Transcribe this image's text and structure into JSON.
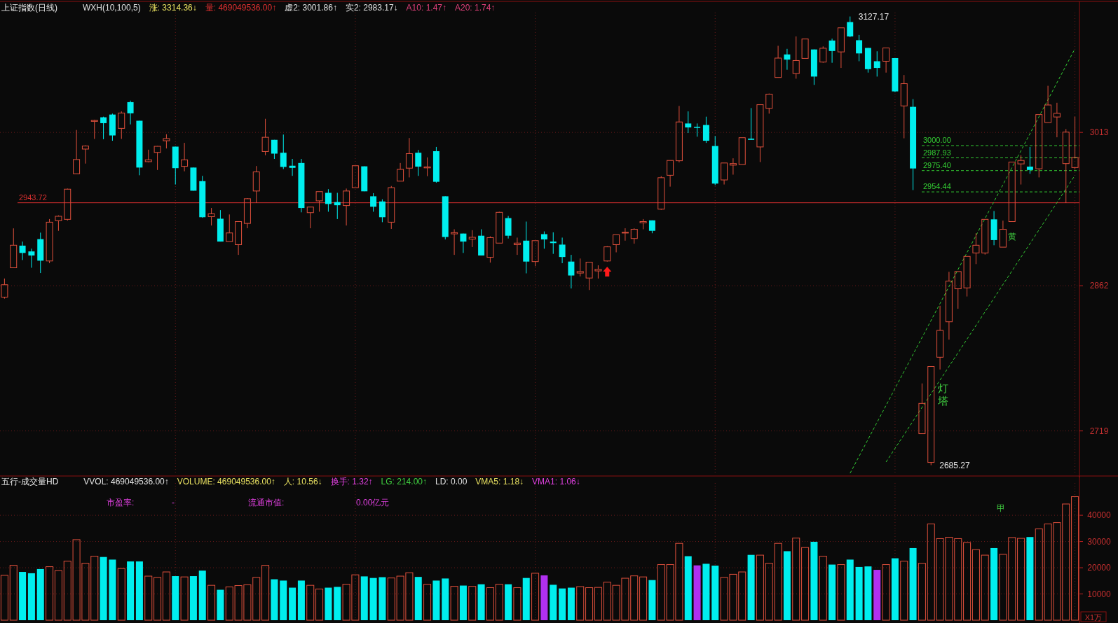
{
  "chart_data": [
    {
      "type": "candlestick",
      "title": "上证指数(日线)",
      "subtitle": "WXH(10,100,5)   涨: 3314.36↓   量: 469049536.00↑   虚2: 3001.86↑   实2: 2983.17↓   A10: 1.47↑   A20: 1.74↑",
      "categories": [
        null,
        null,
        null,
        null,
        null,
        null,
        null,
        null,
        null,
        null,
        null,
        null,
        null,
        null,
        null,
        null,
        null,
        null,
        null,
        null,
        null,
        null,
        null,
        null,
        null,
        null,
        null,
        null,
        null,
        null,
        null,
        null,
        null,
        null,
        null,
        null,
        null,
        null,
        null,
        null,
        null,
        null,
        null,
        null,
        null,
        null,
        null,
        null,
        null,
        null,
        null,
        null,
        null,
        null,
        null,
        null,
        null,
        null,
        null,
        null,
        null,
        null,
        null,
        null,
        null,
        null,
        null,
        null,
        null,
        null,
        null,
        null,
        null,
        null,
        null,
        null,
        null,
        null,
        null,
        null,
        null,
        null,
        null,
        null,
        null,
        null,
        null,
        null,
        null,
        null,
        null,
        null,
        null,
        null,
        null,
        null,
        null,
        null,
        null,
        null,
        null,
        null,
        null,
        null,
        null,
        null,
        null,
        null,
        null,
        null,
        null,
        null,
        null,
        null,
        null,
        null,
        null,
        null,
        null,
        null
      ],
      "ohlc": [
        [
          2850.8,
          2869.1,
          2849.3,
          2863.0
        ],
        [
          2879.7,
          2918.5,
          2879.7,
          2901.9
        ],
        [
          2901.5,
          2905.5,
          2887.3,
          2894.3
        ],
        [
          2895.8,
          2898.5,
          2879.7,
          2891.8
        ],
        [
          2907.9,
          2914.3,
          2874.5,
          2886.7
        ],
        [
          2886.4,
          2927.7,
          2884.2,
          2924.6
        ],
        [
          2926.1,
          2931.3,
          2916.1,
          2930.4
        ],
        [
          2927.4,
          2957.7,
          2926.1,
          2957.1
        ],
        [
          2972.3,
          3015.4,
          2972.3,
          2986.3
        ],
        [
          2996.6,
          3000.3,
          2982.3,
          2999.6
        ],
        [
          3023.9,
          3025.5,
          3006.6,
          3024.8
        ],
        [
          3027.9,
          3028.5,
          3006.3,
          3022.1
        ],
        [
          3030.6,
          3031.5,
          3004.8,
          3010.0
        ],
        [
          3017.0,
          3033.7,
          3006.6,
          3032.1
        ],
        [
          3042.8,
          3044.3,
          3020.9,
          3031.8
        ],
        [
          3024.5,
          3024.5,
          2970.8,
          2978.4
        ],
        [
          2984.2,
          2996.0,
          2983.5,
          2986.0
        ],
        [
          2993.3,
          2999.6,
          2976.0,
          2999.3
        ],
        [
          3004.8,
          3011.2,
          2997.2,
          3006.9
        ],
        [
          2999.0,
          2999.0,
          2961.7,
          2977.8
        ],
        [
          2979.6,
          3002.7,
          2974.7,
          2986.0
        ],
        [
          2978.4,
          2978.4,
          2955.6,
          2955.6
        ],
        [
          2965.0,
          2970.2,
          2928.9,
          2929.5
        ],
        [
          2930.1,
          2938.6,
          2921.3,
          2932.8
        ],
        [
          2928.0,
          2936.5,
          2905.5,
          2905.5
        ],
        [
          2905.5,
          2932.2,
          2905.5,
          2914.0
        ],
        [
          2902.5,
          2925.2,
          2892.4,
          2925.2
        ],
        [
          2923.4,
          2948.3,
          2918.6,
          2947.7
        ],
        [
          2955.3,
          2979.9,
          2943.5,
          2974.1
        ],
        [
          2994.2,
          3026.4,
          2990.5,
          3008.2
        ],
        [
          3005.7,
          3005.7,
          2986.9,
          2992.1
        ],
        [
          2993.0,
          3010.9,
          2976.9,
          2979.0
        ],
        [
          2980.2,
          2986.9,
          2970.2,
          2978.1
        ],
        [
          2982.9,
          2986.9,
          2934.3,
          2938.6
        ],
        [
          2934.0,
          2939.5,
          2918.6,
          2939.5
        ],
        [
          2945.6,
          2954.7,
          2934.9,
          2954.7
        ],
        [
          2953.5,
          2957.1,
          2934.9,
          2942.5
        ],
        [
          2944.4,
          2953.5,
          2927.7,
          2941.3
        ],
        [
          2941.0,
          2957.7,
          2921.3,
          2955.3
        ],
        [
          2958.6,
          2980.2,
          2958.6,
          2980.2
        ],
        [
          2979.6,
          2979.6,
          2955.0,
          2955.0
        ],
        [
          2950.1,
          2953.2,
          2934.9,
          2939.8
        ],
        [
          2945.0,
          2947.1,
          2924.6,
          2929.5
        ],
        [
          2924.6,
          2960.2,
          2918.0,
          2958.6
        ],
        [
          2965.0,
          2982.9,
          2965.0,
          2976.6
        ],
        [
          2977.8,
          3007.5,
          2968.7,
          2992.1
        ],
        [
          2993.0,
          2995.7,
          2970.2,
          2979.3
        ],
        [
          2978.1,
          2988.4,
          2969.9,
          2979.0
        ],
        [
          2994.5,
          2998.7,
          2963.5,
          2964.4
        ],
        [
          2950.1,
          2950.1,
          2907.6,
          2910.0
        ],
        [
          2913.1,
          2917.6,
          2892.4,
          2914.3
        ],
        [
          2913.4,
          2913.4,
          2894.3,
          2905.5
        ],
        [
          2907.9,
          2916.7,
          2900.1,
          2909.7
        ],
        [
          2911.3,
          2917.6,
          2891.8,
          2891.8
        ],
        [
          2890.0,
          2910.7,
          2884.8,
          2909.4
        ],
        [
          2904.0,
          2934.9,
          2904.0,
          2934.3
        ],
        [
          2928.6,
          2930.7,
          2908.5,
          2911.3
        ],
        [
          2902.5,
          2909.4,
          2892.4,
          2904.0
        ],
        [
          2906.4,
          2925.2,
          2874.2,
          2885.8
        ],
        [
          2885.8,
          2906.4,
          2881.2,
          2906.4
        ],
        [
          2912.8,
          2915.5,
          2898.5,
          2907.6
        ],
        [
          2905.5,
          2914.6,
          2893.4,
          2904.0
        ],
        [
          2902.5,
          2909.4,
          2884.2,
          2890.3
        ],
        [
          2885.8,
          2892.4,
          2859.3,
          2872.1
        ],
        [
          2874.5,
          2888.8,
          2871.2,
          2876.0
        ],
        [
          2869.6,
          2885.2,
          2857.8,
          2885.2
        ],
        [
          2876.6,
          2882.1,
          2869.1,
          2878.2
        ],
        [
          2886.4,
          2901.0,
          2885.8,
          2900.3
        ],
        [
          2902.5,
          2912.2,
          2894.9,
          2912.2
        ],
        [
          2914.0,
          2918.6,
          2906.4,
          2914.6
        ],
        [
          2908.5,
          2918.6,
          2903.4,
          2917.6
        ],
        [
          2924.0,
          2927.7,
          2917.6,
          2925.2
        ],
        [
          2926.4,
          2926.4,
          2913.7,
          2916.1
        ],
        [
          2937.4,
          2969.9,
          2936.8,
          2968.4
        ],
        [
          2970.8,
          2985.4,
          2959.6,
          2985.4
        ],
        [
          2985.1,
          3039.1,
          2983.5,
          3023.3
        ],
        [
          3021.8,
          3033.7,
          3012.4,
          3017.9
        ],
        [
          3018.5,
          3021.8,
          3008.8,
          3017.9
        ],
        [
          3020.3,
          3028.5,
          3002.7,
          3004.8
        ],
        [
          2999.6,
          3009.4,
          2961.1,
          2962.6
        ],
        [
          2966.2,
          2982.9,
          2961.7,
          2982.9
        ],
        [
          2980.8,
          2987.5,
          2971.4,
          2982.3
        ],
        [
          2981.4,
          3007.8,
          2981.4,
          3007.8
        ],
        [
          3006.9,
          3037.0,
          3005.7,
          3005.7
        ],
        [
          2998.7,
          3040.3,
          2983.8,
          3040.3
        ],
        [
          3036.7,
          3051.3,
          3031.5,
          3050.7
        ],
        [
          3067.1,
          3098.3,
          3067.1,
          3086.2
        ],
        [
          3089.8,
          3095.3,
          3074.7,
          3084.7
        ],
        [
          3071.0,
          3107.5,
          3065.9,
          3083.8
        ],
        [
          3085.9,
          3105.0,
          3085.9,
          3105.0
        ],
        [
          3094.7,
          3094.7,
          3059.8,
          3068.0
        ],
        [
          3082.3,
          3097.7,
          3081.6,
          3095.9
        ],
        [
          3103.5,
          3105.3,
          3081.6,
          3093.2
        ],
        [
          3092.3,
          3116.0,
          3076.5,
          3116.0
        ],
        [
          3121.7,
          3127.17,
          3106.8,
          3107.5
        ],
        [
          3103.8,
          3109.0,
          3083.1,
          3090.8
        ],
        [
          3096.2,
          3096.2,
          3071.9,
          3075.3
        ],
        [
          3083.1,
          3092.9,
          3068.0,
          3076.5
        ],
        [
          3083.1,
          3096.2,
          3071.9,
          3096.2
        ],
        [
          3086.2,
          3086.2,
          3052.8,
          3053.4
        ],
        [
          3039.1,
          3069.5,
          3007.2,
          3061.0
        ],
        [
          3038.2,
          3045.8,
          2956.2,
          2977.5
        ],
        [
          2716.3,
          2765.8,
          2716.3,
          2746.1
        ],
        [
          2688.0,
          2782.5,
          2685.27,
          2782.5
        ],
        [
          2791.6,
          2842.3,
          2779.5,
          2818.0
        ],
        [
          2826.5,
          2875.7,
          2808.9,
          2866.6
        ],
        [
          2859.0,
          2876.0,
          2839.3,
          2876.0
        ],
        [
          2859.9,
          2890.9,
          2851.4,
          2890.9
        ],
        [
          2894.3,
          2913.7,
          2883.3,
          2901.9
        ],
        [
          2894.3,
          2927.4,
          2892.7,
          2927.4
        ],
        [
          2927.4,
          2935.6,
          2901.9,
          2907.0
        ],
        [
          2900.0,
          2926.1,
          2900.0,
          2917.6
        ],
        [
          2925.2,
          2983.8,
          2925.2,
          2983.8
        ],
        [
          2982.0,
          2990.5,
          2961.7,
          2985.4
        ],
        [
          2979.3,
          2998.7,
          2972.3,
          2976.0
        ],
        [
          2977.2,
          3030.6,
          2968.7,
          3030.6
        ],
        [
          3022.7,
          3058.9,
          3022.7,
          3040.0
        ],
        [
          3028.2,
          3042.2,
          3008.2,
          3031.8
        ],
        [
          2982.3,
          3016.3,
          2943.5,
          3013.3
        ],
        [
          2978.4,
          3028.5,
          2976.9,
          2988.4
        ]
      ],
      "colors": [
        "#e0503c",
        "#e0503c",
        "#00eeee",
        "#00eeee",
        "#00eeee",
        "#e0503c",
        "#e0503c",
        "#e0503c",
        "#e0503c",
        "#e0503c",
        "#e0503c",
        "#00eeee",
        "#00eeee",
        "#e0503c",
        "#00eeee",
        "#00eeee",
        "#e0503c",
        "#e0503c",
        "#e0503c",
        "#00eeee",
        "#e0503c",
        "#00eeee",
        "#00eeee",
        "#e0503c",
        "#00eeee",
        "#e0503c",
        "#e0503c",
        "#e0503c",
        "#e0503c",
        "#e0503c",
        "#00eeee",
        "#00eeee",
        "#00eeee",
        "#00eeee",
        "#e0503c",
        "#e0503c",
        "#00eeee",
        "#00eeee",
        "#e0503c",
        "#e0503c",
        "#00eeee",
        "#00eeee",
        "#00eeee",
        "#e0503c",
        "#e0503c",
        "#e0503c",
        "#00eeee",
        "#e0503c",
        "#00eeee",
        "#00eeee",
        "#e0503c",
        "#00eeee",
        "#e0503c",
        "#00eeee",
        "#e0503c",
        "#e0503c",
        "#00eeee",
        "#e0503c",
        "#00eeee",
        "#e0503c",
        "#00eeee",
        "#00eeee",
        "#00eeee",
        "#00eeee",
        "#e0503c",
        "#e0503c",
        "#e0503c",
        "#e0503c",
        "#e0503c",
        "#e0503c",
        "#e0503c",
        "#e0503c",
        "#00eeee",
        "#e0503c",
        "#e0503c",
        "#e0503c",
        "#00eeee",
        "#00eeee",
        "#00eeee",
        "#00eeee",
        "#e0503c",
        "#e0503c",
        "#e0503c",
        "#00eeee",
        "#e0503c",
        "#e0503c",
        "#e0503c",
        "#00eeee",
        "#e0503c",
        "#e0503c",
        "#00eeee",
        "#e0503c",
        "#00eeee",
        "#e0503c",
        "#00eeee",
        "#00eeee",
        "#00eeee",
        "#00eeee",
        "#e0503c",
        "#00eeee",
        "#e0503c",
        "#00eeee",
        "#e0503c",
        "#e0503c",
        "#e0503c",
        "#e0503c",
        "#e0503c",
        "#e0503c",
        "#e0503c",
        "#e0503c",
        "#00eeee",
        "#e0503c",
        "#e0503c",
        "#e0503c",
        "#00eeee",
        "#e0503c",
        "#e0503c",
        "#e0503c",
        "#e0503c",
        "#e0503c"
      ],
      "series": [
        {
          "type": "line",
          "color": "#33cc33",
          "line_style": "dashed",
          "values": [
            null,
            null,
            null,
            null,
            null,
            null,
            null,
            null,
            null,
            null,
            null,
            null,
            null,
            null,
            null,
            null,
            null,
            null,
            null,
            null,
            null,
            null,
            null,
            null,
            null,
            null,
            null,
            null,
            null,
            null,
            null,
            null,
            null,
            null,
            null,
            null,
            null,
            null,
            null,
            null,
            null,
            null,
            null,
            null,
            null,
            null,
            null,
            null,
            null,
            null,
            null,
            null,
            null,
            null,
            null,
            null,
            null,
            null,
            null,
            null,
            null,
            null,
            null,
            null,
            null,
            null,
            null,
            null,
            null,
            null,
            null,
            null,
            null,
            null,
            null,
            null,
            null,
            null,
            null,
            null,
            null,
            null,
            null,
            null,
            null,
            null,
            null,
            null,
            null,
            null,
            null,
            null,
            null,
            null,
            2677.3,
            null,
            null,
            null,
            null,
            null,
            null,
            null,
            null,
            null,
            null,
            null,
            null,
            null,
            null,
            null,
            null,
            null,
            null,
            null,
            null,
            null,
            null,
            null,
            null,
            3095.4
          ]
        },
        {
          "type": "line",
          "color": "#33cc33",
          "line_style": "dashed",
          "values": [
            null,
            null,
            null,
            null,
            null,
            null,
            null,
            null,
            null,
            null,
            null,
            null,
            null,
            null,
            null,
            null,
            null,
            null,
            null,
            null,
            null,
            null,
            null,
            null,
            null,
            null,
            null,
            null,
            null,
            null,
            null,
            null,
            null,
            null,
            null,
            null,
            null,
            null,
            null,
            null,
            null,
            null,
            null,
            null,
            null,
            null,
            null,
            null,
            null,
            null,
            null,
            null,
            null,
            null,
            null,
            null,
            null,
            null,
            null,
            null,
            null,
            null,
            null,
            null,
            null,
            null,
            null,
            null,
            null,
            null,
            null,
            null,
            null,
            null,
            null,
            null,
            null,
            null,
            null,
            null,
            null,
            null,
            null,
            null,
            null,
            null,
            null,
            null,
            null,
            null,
            null,
            null,
            null,
            null,
            null,
            null,
            null,
            null,
            2688.4,
            null,
            null,
            null,
            null,
            null,
            null,
            null,
            null,
            null,
            null,
            null,
            null,
            null,
            null,
            null,
            null,
            null,
            null,
            null,
            null,
            2970.8
          ]
        }
      ],
      "ylim": [
        2676,
        3131
      ],
      "yticks": [
        3013,
        2862,
        2719
      ],
      "grid": true,
      "tick_labels": "y",
      "ref_lines": [
        {
          "axis": "y",
          "value": 2943.72,
          "label": "2943.72",
          "color": "#d83030",
          "line_style": "solid"
        },
        {
          "axis": "y",
          "value": 3000.0,
          "label": "3000.00",
          "color": "#33cc33",
          "line_style": "dashed"
        },
        {
          "axis": "y",
          "value": 2987.93,
          "label": "2987.93",
          "color": "#33cc33",
          "line_style": "dashed"
        },
        {
          "axis": "y",
          "value": 2975.4,
          "label": "2975.40",
          "color": "#33cc33",
          "line_style": "dashed"
        },
        {
          "axis": "y",
          "value": 2954.44,
          "label": "2954.44",
          "color": "#33cc33",
          "line_style": "dashed"
        }
      ],
      "annotations": [
        "3127.17",
        "2685.27",
        "灯塔",
        "黄"
      ]
    },
    {
      "type": "bar",
      "title": "五行-成交量HD",
      "subtitle": "VVOL: 469049536.00↑   VOLUME: 469049536.00↑   人: 10.56↓   换手: 1.32↑   LG: 214.00↑   LD: 0.00   VMA5: 1.18↓   VMA1: 1.06↓",
      "categories": [
        null,
        null,
        null,
        null,
        null,
        null,
        null,
        null,
        null,
        null,
        null,
        null,
        null,
        null,
        null,
        null,
        null,
        null,
        null,
        null,
        null,
        null,
        null,
        null,
        null,
        null,
        null,
        null,
        null,
        null,
        null,
        null,
        null,
        null,
        null,
        null,
        null,
        null,
        null,
        null,
        null,
        null,
        null,
        null,
        null,
        null,
        null,
        null,
        null,
        null,
        null,
        null,
        null,
        null,
        null,
        null,
        null,
        null,
        null,
        null,
        null,
        null,
        null,
        null,
        null,
        null,
        null,
        null,
        null,
        null,
        null,
        null,
        null,
        null,
        null,
        null,
        null,
        null,
        null,
        null,
        null,
        null,
        null,
        null,
        null,
        null,
        null,
        null,
        null,
        null,
        null,
        null,
        null,
        null,
        null,
        null,
        null,
        null,
        null,
        null,
        null,
        null,
        null,
        null,
        null,
        null,
        null,
        null,
        null,
        null,
        null,
        null,
        null,
        null,
        null,
        null,
        null,
        null,
        null,
        null
      ],
      "values": [
        17100,
        20900,
        18400,
        17900,
        19500,
        20400,
        18900,
        22500,
        30700,
        21700,
        24400,
        24100,
        23100,
        19700,
        22400,
        22400,
        16800,
        16300,
        18400,
        16800,
        16500,
        16800,
        18900,
        13300,
        11600,
        12700,
        13200,
        13500,
        16300,
        20900,
        15600,
        15100,
        12400,
        15100,
        13300,
        11900,
        12400,
        12700,
        13700,
        17300,
        16700,
        16100,
        16400,
        16100,
        16800,
        18100,
        16500,
        13700,
        15100,
        15900,
        12900,
        13200,
        12900,
        13700,
        12400,
        13700,
        13700,
        12400,
        16100,
        17900,
        17100,
        13500,
        12100,
        12400,
        12800,
        12400,
        12500,
        14500,
        13300,
        16000,
        16900,
        16500,
        15300,
        21200,
        21200,
        29300,
        24400,
        20900,
        21500,
        20800,
        16300,
        17500,
        18400,
        24900,
        24800,
        21700,
        29300,
        26300,
        31300,
        27700,
        29900,
        24400,
        21200,
        21200,
        23100,
        20300,
        20500,
        19200,
        21200,
        23600,
        22500,
        27500,
        21700,
        36700,
        31100,
        31600,
        31100,
        29600,
        26900,
        24800,
        27500,
        25100,
        31500,
        31200,
        31700,
        34800,
        36700,
        37200,
        44300,
        47100
      ],
      "colors": [
        "#e0503c",
        "#e0503c",
        "#00eeee",
        "#00eeee",
        "#00eeee",
        "#e0503c",
        "#e0503c",
        "#e0503c",
        "#e0503c",
        "#e0503c",
        "#e0503c",
        "#00eeee",
        "#00eeee",
        "#e0503c",
        "#00eeee",
        "#00eeee",
        "#e0503c",
        "#e0503c",
        "#e0503c",
        "#00eeee",
        "#e0503c",
        "#00eeee",
        "#00eeee",
        "#e0503c",
        "#00eeee",
        "#e0503c",
        "#e0503c",
        "#e0503c",
        "#e0503c",
        "#e0503c",
        "#00eeee",
        "#00eeee",
        "#00eeee",
        "#00eeee",
        "#e0503c",
        "#e0503c",
        "#00eeee",
        "#00eeee",
        "#e0503c",
        "#e0503c",
        "#00eeee",
        "#00eeee",
        "#00eeee",
        "#e0503c",
        "#e0503c",
        "#e0503c",
        "#00eeee",
        "#e0503c",
        "#00eeee",
        "#00eeee",
        "#e0503c",
        "#00eeee",
        "#e0503c",
        "#00eeee",
        "#e0503c",
        "#e0503c",
        "#00eeee",
        "#e0503c",
        "#00eeee",
        "#e0503c",
        "#b030f0",
        "#00eeee",
        "#00eeee",
        "#00eeee",
        "#e0503c",
        "#e0503c",
        "#e0503c",
        "#e0503c",
        "#e0503c",
        "#e0503c",
        "#e0503c",
        "#e0503c",
        "#00eeee",
        "#e0503c",
        "#e0503c",
        "#e0503c",
        "#00eeee",
        "#b030f0",
        "#00eeee",
        "#00eeee",
        "#e0503c",
        "#e0503c",
        "#e0503c",
        "#00eeee",
        "#e0503c",
        "#e0503c",
        "#e0503c",
        "#00eeee",
        "#e0503c",
        "#e0503c",
        "#00eeee",
        "#e0503c",
        "#00eeee",
        "#e0503c",
        "#00eeee",
        "#00eeee",
        "#00eeee",
        "#b030f0",
        "#e0503c",
        "#00eeee",
        "#e0503c",
        "#00eeee",
        "#e0503c",
        "#e0503c",
        "#e0503c",
        "#e0503c",
        "#e0503c",
        "#e0503c",
        "#e0503c",
        "#e0503c",
        "#00eeee",
        "#e0503c",
        "#e0503c",
        "#e0503c",
        "#00eeee",
        "#e0503c",
        "#e0503c",
        "#e0503c",
        "#e0503c",
        "#e0503c"
      ],
      "ylim": [
        0,
        52300
      ],
      "yticks": [
        10000,
        20000,
        30000,
        40000
      ],
      "grid": true,
      "tick_labels": "y",
      "ylabel": "X1万",
      "annotations": [
        "市盈率:",
        "-",
        "流通市值:",
        "0.00亿元",
        "甲"
      ]
    }
  ]
}
